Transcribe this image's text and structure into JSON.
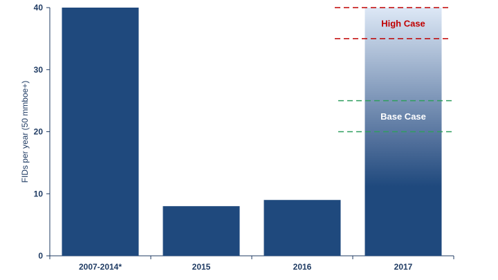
{
  "chart_data": {
    "type": "bar",
    "title": "",
    "xlabel": "",
    "ylabel": "FIDs per year (50 mmboe+)",
    "ylim": [
      0,
      40
    ],
    "yticks": [
      0,
      10,
      20,
      30,
      40
    ],
    "grid": false,
    "categories": [
      "2007-2014*",
      "2015",
      "2016",
      "2017"
    ],
    "values": [
      40,
      8,
      9,
      40
    ],
    "highlight": {
      "category": "2017",
      "style": "gradient"
    },
    "annotations": [
      {
        "label": "High Case",
        "y_low": 35,
        "y_high": 40,
        "color": "#c00000"
      },
      {
        "label": "Base Case",
        "y_low": 20,
        "y_high": 25,
        "color": "#ffffff",
        "line_color": "#2e9e5e"
      }
    ],
    "colors": {
      "bar": "#1f497d",
      "axis": "#1f3b63",
      "gradient_top": "#dde8f6",
      "gradient_bottom": "#1f497d"
    }
  }
}
